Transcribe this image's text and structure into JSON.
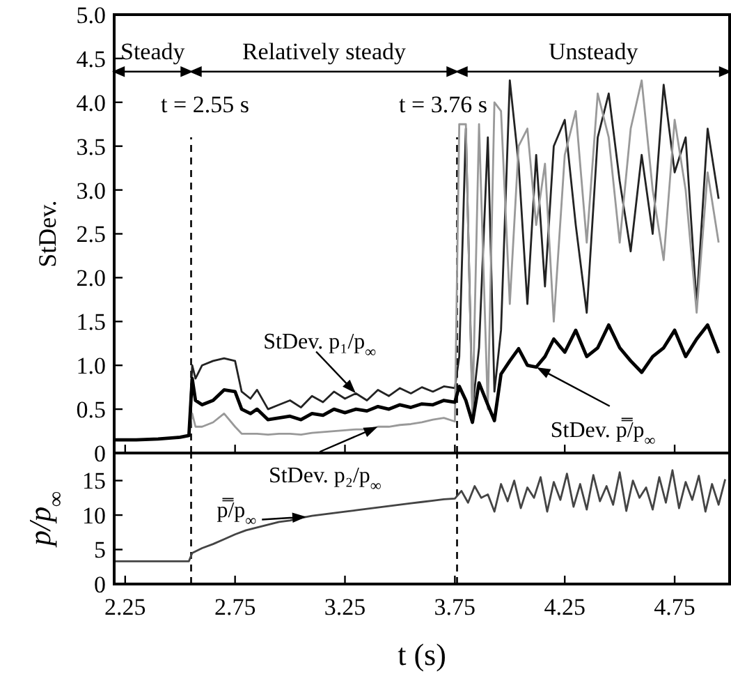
{
  "chart_data": [
    {
      "type": "line",
      "ylabel": "StDev.",
      "xlim": [
        2.2,
        5.0
      ],
      "xticks": [
        2.25,
        2.75,
        3.25,
        3.75,
        4.25,
        4.75
      ],
      "ylim": [
        0,
        5.0
      ],
      "yticks": [
        0,
        {
          "value": 0.5,
          "label": "0.5"
        },
        {
          "value": 1,
          "label": "1.0"
        },
        {
          "value": 1.5,
          "label": "1.5"
        },
        {
          "value": 2,
          "label": "2.0"
        },
        {
          "value": 2.5,
          "label": "2.5"
        },
        {
          "value": 3,
          "label": "3.0"
        },
        {
          "value": 3.5,
          "label": "3.5"
        },
        {
          "value": 4,
          "label": "4.0"
        },
        {
          "value": 4.5,
          "label": "4.5"
        },
        {
          "value": 5,
          "label": "5.0"
        }
      ],
      "tick_labels": "y",
      "grid": false,
      "line_style": "solid",
      "series": [
        {
          "color": "#222222",
          "x": [
            2.2,
            2.3,
            2.4,
            2.5,
            2.54,
            2.555,
            2.57,
            2.6,
            2.65,
            2.7,
            2.75,
            2.78,
            2.82,
            2.85,
            2.9,
            2.95,
            3.0,
            3.05,
            3.1,
            3.15,
            3.2,
            3.25,
            3.3,
            3.35,
            3.4,
            3.45,
            3.5,
            3.55,
            3.6,
            3.65,
            3.7,
            3.75,
            3.77,
            3.8,
            3.83,
            3.86,
            3.9,
            3.93,
            3.96,
            4.0,
            4.04,
            4.08,
            4.12,
            4.16,
            4.2,
            4.25,
            4.3,
            4.35,
            4.4,
            4.45,
            4.5,
            4.55,
            4.6,
            4.65,
            4.7,
            4.75,
            4.8,
            4.85,
            4.9,
            4.95
          ],
          "values": [
            0.15,
            0.15,
            0.16,
            0.18,
            0.2,
            1.0,
            0.85,
            1.0,
            1.05,
            1.08,
            1.05,
            0.7,
            0.62,
            0.72,
            0.5,
            0.55,
            0.6,
            0.52,
            0.65,
            0.58,
            0.7,
            0.62,
            0.68,
            0.6,
            0.72,
            0.65,
            0.74,
            0.68,
            0.75,
            0.7,
            0.76,
            0.74,
            1.1,
            3.7,
            0.5,
            1.2,
            3.6,
            0.7,
            1.4,
            4.25,
            3.3,
            1.7,
            3.4,
            1.9,
            3.5,
            3.8,
            2.6,
            1.6,
            3.6,
            4.1,
            3.1,
            2.3,
            3.4,
            2.5,
            4.2,
            3.2,
            3.6,
            1.7,
            3.7,
            2.9
          ]
        },
        {
          "color": "#999999",
          "x": [
            2.2,
            2.3,
            2.4,
            2.5,
            2.54,
            2.555,
            2.57,
            2.6,
            2.65,
            2.7,
            2.75,
            2.78,
            2.82,
            2.85,
            2.9,
            2.95,
            3.0,
            3.05,
            3.1,
            3.15,
            3.2,
            3.25,
            3.3,
            3.35,
            3.4,
            3.45,
            3.5,
            3.55,
            3.6,
            3.65,
            3.7,
            3.75,
            3.77,
            3.8,
            3.83,
            3.86,
            3.9,
            3.93,
            3.96,
            4.0,
            4.04,
            4.08,
            4.12,
            4.16,
            4.2,
            4.25,
            4.3,
            4.35,
            4.4,
            4.45,
            4.5,
            4.55,
            4.6,
            4.65,
            4.7,
            4.75,
            4.8,
            4.85,
            4.9,
            4.95
          ],
          "values": [
            0.15,
            0.15,
            0.16,
            0.18,
            0.2,
            0.45,
            0.3,
            0.3,
            0.35,
            0.45,
            0.3,
            0.22,
            0.22,
            0.22,
            0.21,
            0.22,
            0.22,
            0.21,
            0.23,
            0.24,
            0.25,
            0.26,
            0.27,
            0.27,
            0.3,
            0.3,
            0.32,
            0.33,
            0.35,
            0.38,
            0.4,
            0.36,
            3.75,
            3.75,
            0.4,
            3.75,
            0.5,
            4.0,
            3.9,
            1.7,
            3.5,
            3.7,
            2.6,
            3.3,
            1.5,
            3.4,
            3.9,
            2.4,
            4.1,
            3.6,
            2.4,
            3.7,
            4.25,
            3.0,
            2.2,
            3.8,
            3.0,
            1.6,
            3.2,
            2.4
          ]
        },
        {
          "color": "#000000",
          "x": [
            2.2,
            2.3,
            2.4,
            2.5,
            2.54,
            2.555,
            2.57,
            2.6,
            2.65,
            2.7,
            2.75,
            2.78,
            2.82,
            2.85,
            2.9,
            2.95,
            3.0,
            3.05,
            3.1,
            3.15,
            3.2,
            3.25,
            3.3,
            3.35,
            3.4,
            3.45,
            3.5,
            3.55,
            3.6,
            3.65,
            3.7,
            3.75,
            3.77,
            3.8,
            3.83,
            3.86,
            3.9,
            3.93,
            3.96,
            4.0,
            4.04,
            4.08,
            4.12,
            4.16,
            4.2,
            4.25,
            4.3,
            4.35,
            4.4,
            4.45,
            4.5,
            4.55,
            4.6,
            4.65,
            4.7,
            4.75,
            4.8,
            4.85,
            4.9,
            4.95
          ],
          "values": [
            0.15,
            0.15,
            0.16,
            0.18,
            0.2,
            0.85,
            0.6,
            0.55,
            0.6,
            0.72,
            0.7,
            0.5,
            0.45,
            0.5,
            0.38,
            0.4,
            0.42,
            0.38,
            0.45,
            0.43,
            0.5,
            0.46,
            0.5,
            0.48,
            0.53,
            0.5,
            0.55,
            0.52,
            0.56,
            0.55,
            0.6,
            0.58,
            0.76,
            0.6,
            0.35,
            0.8,
            0.55,
            0.37,
            0.9,
            1.05,
            1.19,
            1.0,
            0.98,
            1.1,
            1.3,
            1.15,
            1.4,
            1.1,
            1.2,
            1.46,
            1.2,
            1.05,
            0.92,
            1.1,
            1.2,
            1.4,
            1.1,
            1.3,
            1.46,
            1.14
          ]
        }
      ],
      "ref_lines": [
        {
          "axis": "x",
          "value": 2.55,
          "label": "t = 2.55 s",
          "line_style": "dashed"
        },
        {
          "axis": "x",
          "value": 3.76,
          "label": "t = 3.76 s",
          "line_style": "dashed"
        }
      ],
      "annotations": [
        "Steady",
        "Relatively steady",
        "Unsteady",
        {
          "text": "StDev. p₁/p$_{∞}$",
          "x": 3.3,
          "y": 0.68
        },
        {
          "text": "StDev. p₂/p$_{∞}$",
          "x": 3.4,
          "y": 0.3
        },
        {
          "text": "StDev. p̿/p$_{∞}$",
          "x": 4.12,
          "y": 0.98
        }
      ]
    },
    {
      "type": "line",
      "xlabel": "t (s)",
      "ylabel": "p/p$_{∞}$",
      "xlim": [
        2.2,
        5.0
      ],
      "xticks": [
        2.25,
        2.75,
        3.25,
        3.75,
        4.25,
        4.75
      ],
      "ylim": [
        0,
        19
      ],
      "yticks": [
        0,
        5,
        10,
        15
      ],
      "grid": false,
      "line_style": "solid",
      "series": [
        {
          "color": "#444444",
          "x": [
            2.2,
            2.3,
            2.4,
            2.5,
            2.54,
            2.555,
            2.6,
            2.65,
            2.7,
            2.75,
            2.8,
            2.85,
            2.9,
            2.95,
            3.0,
            3.05,
            3.1,
            3.15,
            3.2,
            3.25,
            3.3,
            3.35,
            3.4,
            3.45,
            3.5,
            3.55,
            3.6,
            3.65,
            3.7,
            3.75,
            3.78,
            3.81,
            3.84,
            3.87,
            3.9,
            3.93,
            3.96,
            3.99,
            4.02,
            4.05,
            4.08,
            4.11,
            4.14,
            4.17,
            4.2,
            4.23,
            4.26,
            4.29,
            4.32,
            4.35,
            4.38,
            4.41,
            4.44,
            4.47,
            4.5,
            4.53,
            4.56,
            4.59,
            4.62,
            4.65,
            4.68,
            4.71,
            4.74,
            4.77,
            4.8,
            4.83,
            4.86,
            4.89,
            4.92,
            4.95,
            4.98
          ],
          "values": [
            3.3,
            3.3,
            3.3,
            3.3,
            3.3,
            4.5,
            5.2,
            5.8,
            6.5,
            7.2,
            7.8,
            8.2,
            8.6,
            9.0,
            9.2,
            9.6,
            9.9,
            10.1,
            10.3,
            10.5,
            10.7,
            10.9,
            11.1,
            11.3,
            11.5,
            11.7,
            11.9,
            12.1,
            12.3,
            12.4,
            13.5,
            11.8,
            14.2,
            12.5,
            13.0,
            10.5,
            14.5,
            12.0,
            15.0,
            11.0,
            14.0,
            12.5,
            15.5,
            10.5,
            14.8,
            12.2,
            16.0,
            11.2,
            14.5,
            10.8,
            15.8,
            12.0,
            14.2,
            11.5,
            16.2,
            10.6,
            15.0,
            12.5,
            14.0,
            10.8,
            15.5,
            11.8,
            16.5,
            11.0,
            14.8,
            12.2,
            15.7,
            10.5,
            14.5,
            11.5,
            15.2
          ]
        }
      ],
      "ref_lines": [
        {
          "axis": "x",
          "value": 2.55,
          "line_style": "dashed"
        },
        {
          "axis": "x",
          "value": 3.76,
          "line_style": "dashed"
        }
      ],
      "annotations": [
        {
          "text": "p̿/p$_{∞}$",
          "x": 3.075,
          "y": 9.75
        }
      ]
    }
  ]
}
